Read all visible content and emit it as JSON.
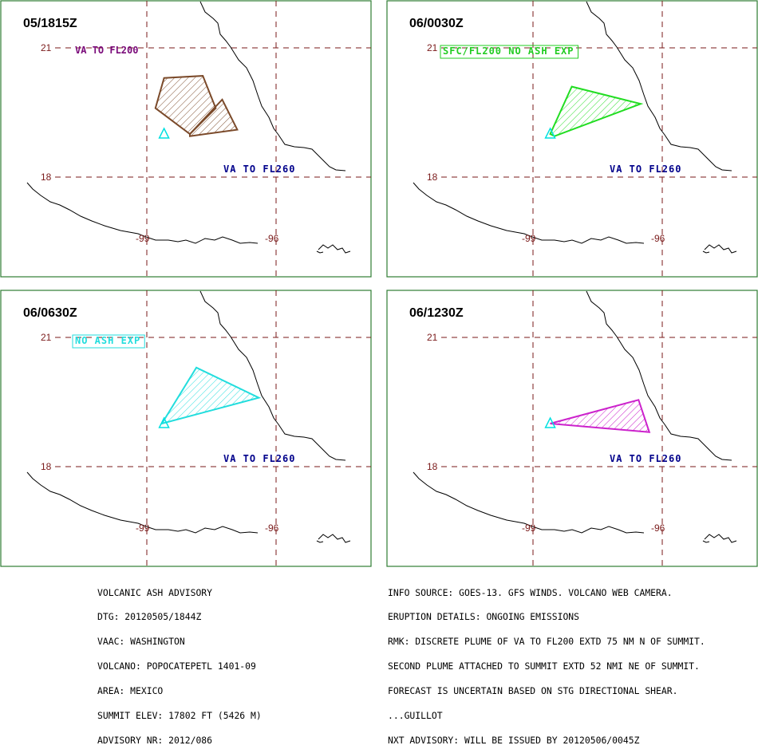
{
  "colors": {
    "grid": "#7a1a1a",
    "coast": "#000000",
    "frame": "#2e7d32",
    "volcano": "#00e0e0",
    "level_text": "#00008b",
    "va_to_fl200": "#7a0a7a",
    "sfc_box": "#22cc22",
    "no_ash_box": "#22dddd"
  },
  "panels": [
    {
      "time": "05/1815Z",
      "lat_labels": [
        "21",
        "18"
      ],
      "lon_labels": [
        "-99",
        "-96"
      ],
      "level_label": "VA TO FL260",
      "box_label": "VA TO FL200",
      "box_label_style": "plain",
      "box_label_color": "#7a0a7a",
      "plume_color": "#7b4a2a",
      "plumes": [
        [
          [
            -98.6,
            20.3
          ],
          [
            -97.7,
            20.35
          ],
          [
            -97.4,
            19.6
          ],
          [
            -98.0,
            19.0
          ],
          [
            -98.8,
            19.6
          ]
        ],
        [
          [
            -98.0,
            19.0
          ],
          [
            -97.25,
            19.8
          ],
          [
            -96.9,
            19.1
          ],
          [
            -98.0,
            18.95
          ]
        ]
      ]
    },
    {
      "time": "06/0030Z",
      "lat_labels": [
        "21",
        "18"
      ],
      "lon_labels": [
        "-99",
        "-96"
      ],
      "level_label": "VA TO FL260",
      "box_label": "SFC/FL200 NO ASH EXP",
      "box_label_style": "boxed",
      "box_label_color": "#22cc22",
      "plume_color": "#22dd22",
      "plumes": [
        [
          [
            -98.6,
            19.0
          ],
          [
            -98.1,
            20.1
          ],
          [
            -96.5,
            19.7
          ],
          [
            -98.5,
            18.95
          ]
        ]
      ]
    },
    {
      "time": "06/0630Z",
      "lat_labels": [
        "21",
        "18"
      ],
      "lon_labels": [
        "-99",
        "-96"
      ],
      "level_label": "VA TO FL260",
      "box_label": "NO ASH EXP",
      "box_label_style": "boxed",
      "box_label_color": "#22dddd",
      "plume_color": "#22dddd",
      "plumes": [
        [
          [
            -98.65,
            19.0
          ],
          [
            -97.85,
            20.3
          ],
          [
            -96.4,
            19.6
          ]
        ]
      ]
    },
    {
      "time": "06/1230Z",
      "lat_labels": [
        "21",
        "18"
      ],
      "lon_labels": [
        "-99",
        "-96"
      ],
      "level_label": "VA TO FL260",
      "box_label": "",
      "box_label_style": "none",
      "box_label_color": "#000000",
      "plume_color": "#cc22cc",
      "plumes": [
        [
          [
            -98.6,
            19.0
          ],
          [
            -96.55,
            19.55
          ],
          [
            -96.3,
            18.8
          ]
        ]
      ]
    }
  ],
  "volcano": {
    "lon": -98.6,
    "lat": 19.0
  },
  "advisory_left": [
    "VOLCANIC ASH ADVISORY",
    "DTG: 20120505/1844Z",
    "VAAC: WASHINGTON",
    "VOLCANO: POPOCATEPETL 1401-09",
    "AREA: MEXICO",
    "SUMMIT ELEV: 17802 FT (5426 M)",
    "ADVISORY NR: 2012/086"
  ],
  "advisory_right": [
    "INFO SOURCE: GOES-13. GFS WINDS. VOLCANO WEB CAMERA.",
    "ERUPTION DETAILS: ONGOING EMISSIONS",
    "RMK: DISCRETE PLUME OF VA TO FL200 EXTD 75 NM N OF SUMMIT.",
    "SECOND PLUME ATTACHED TO SUMMIT EXTD 52 NMI NE OF SUMMIT.",
    "FORECAST IS UNCERTAIN BASED ON STG DIRECTIONAL SHEAR.",
    "...GUILLOT",
    "NXT ADVISORY: WILL BE ISSUED BY 20120506/0045Z"
  ]
}
